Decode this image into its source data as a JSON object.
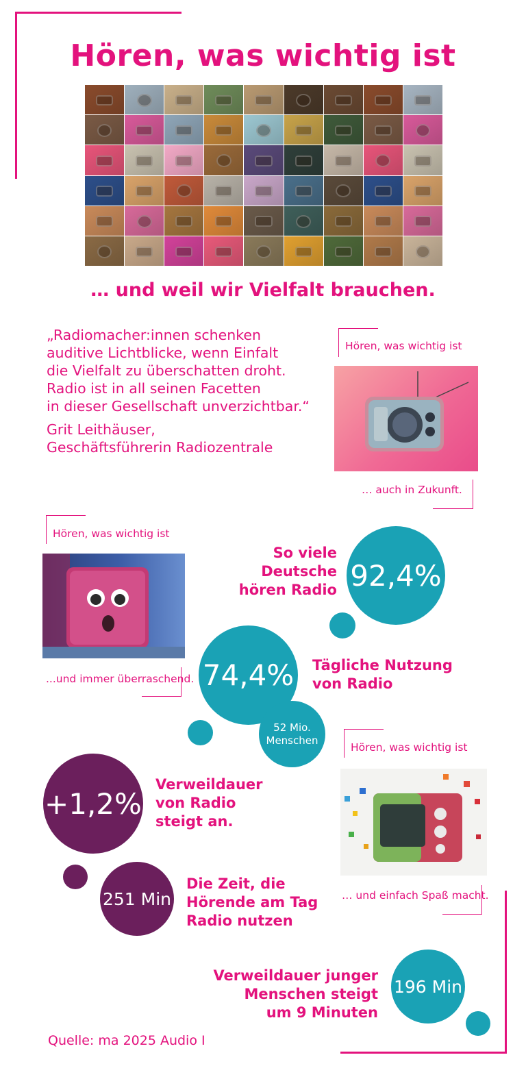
{
  "title": "Hören, was wichtig ist",
  "subtitle": "… und weil wir Vielfalt brauchen.",
  "quote": {
    "lines": [
      "„Radiomacher:innen schenken",
      "auditive Lichtblicke, wenn Einfalt",
      "die Vielfalt zu überschatten droht.",
      "Radio ist in all seinen Facetten",
      "in dieser Gesellschaft unverzichtbar.“"
    ],
    "author_name": "Grit Leithäuser,",
    "author_role": "Geschäftsführerin Radiozentrale"
  },
  "photo_cards": [
    {
      "top_caption": "Hören, was wichtig ist",
      "bottom_caption": "… auch in Zukunft."
    },
    {
      "top_caption": "Hören, was wichtig ist",
      "bottom_caption": "...und immer überraschend."
    },
    {
      "top_caption": "Hören, was wichtig ist",
      "bottom_caption": "… und einfach Spaß macht."
    }
  ],
  "stats": {
    "listeners": {
      "value": "92,4%",
      "label_lines": [
        "So viele",
        "Deutsche",
        "hören Radio"
      ]
    },
    "daily": {
      "value": "74,4%",
      "label_lines": [
        "Tägliche Nutzung",
        "von Radio"
      ],
      "sub_value_lines": [
        "52 Mio.",
        "Menschen"
      ]
    },
    "dwell_growth": {
      "value": "+1,2%",
      "label_lines": [
        "Verweildauer",
        "von Radio",
        "steigt an."
      ]
    },
    "minutes": {
      "value": "251 Min",
      "label_lines": [
        "Die Zeit, die",
        "Hörende am Tag",
        "Radio nutzen"
      ]
    },
    "young": {
      "value": "196 Min",
      "label_lines": [
        "Verweildauer junger",
        "Menschen steigt",
        "um 9 Minuten"
      ]
    }
  },
  "source": "Quelle: ma 2025 Audio I",
  "colors": {
    "accent": "#e3127d",
    "teal": "#1aa2b5",
    "plum": "#6b1f5c"
  },
  "mosaic_tiles": [
    "#8a4b2c",
    "#9fb0bd",
    "#c9b08a",
    "#6f8c5a",
    "#b99a72",
    "#4c3a2a",
    "#6b4a33",
    "#8a4b2c",
    "#a7b5c2",
    "#7a5a45",
    "#d85a9a",
    "#8fa6b8",
    "#c98a3a",
    "#9cc7d1",
    "#c7a34a",
    "#3f5a3a",
    "#7a5a45",
    "#d85a9a",
    "#e8557a",
    "#c9c2b0",
    "#f2a9c6",
    "#9a6a3a",
    "#5a4a7a",
    "#2f3f3a",
    "#c6b8a8",
    "#e8557a",
    "#c9c2b0",
    "#2d4f8a",
    "#d9a36a",
    "#c05a3a",
    "#b8b2a8",
    "#c9a7c9",
    "#4a6f8a",
    "#5a4a3a",
    "#2d4f8a",
    "#d9a36a",
    "#c98a5a",
    "#d86a9a",
    "#a5763f",
    "#e08a3a",
    "#6a5a4a",
    "#3f5f5a",
    "#8a6a3a",
    "#c98a5a",
    "#d86a9a",
    "#8a6a45",
    "#c9a98a",
    "#d2429a",
    "#e85a7a",
    "#8a7a5a",
    "#e0a030",
    "#4f6a3a",
    "#b07a4a",
    "#c9b49a"
  ]
}
